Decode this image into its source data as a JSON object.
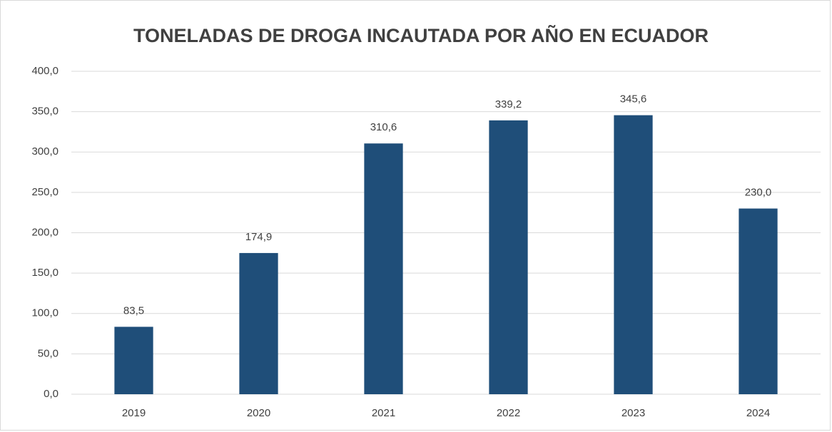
{
  "chart_data": {
    "type": "bar",
    "title": "TONELADAS DE DROGA INCAUTADA POR AÑO EN ECUADOR",
    "categories": [
      "2019",
      "2020",
      "2021",
      "2022",
      "2023",
      "2024"
    ],
    "values": [
      83.5,
      174.9,
      310.6,
      339.2,
      345.6,
      230.0
    ],
    "value_labels": [
      "83,5",
      "174,9",
      "310,6",
      "339,2",
      "345,6",
      "230,0"
    ],
    "color": "#1f4e79",
    "ylim": [
      0,
      400
    ],
    "yticks": [
      {
        "value": 0,
        "label": "0,0"
      },
      {
        "value": 50,
        "label": "50,0"
      },
      {
        "value": 100,
        "label": "100,0"
      },
      {
        "value": 150,
        "label": "150,0"
      },
      {
        "value": 200,
        "label": "200,0"
      },
      {
        "value": 250,
        "label": "250,0"
      },
      {
        "value": 300,
        "label": "300,0"
      },
      {
        "value": 350,
        "label": "350,0"
      },
      {
        "value": 400,
        "label": "400,0"
      }
    ],
    "grid": true
  }
}
